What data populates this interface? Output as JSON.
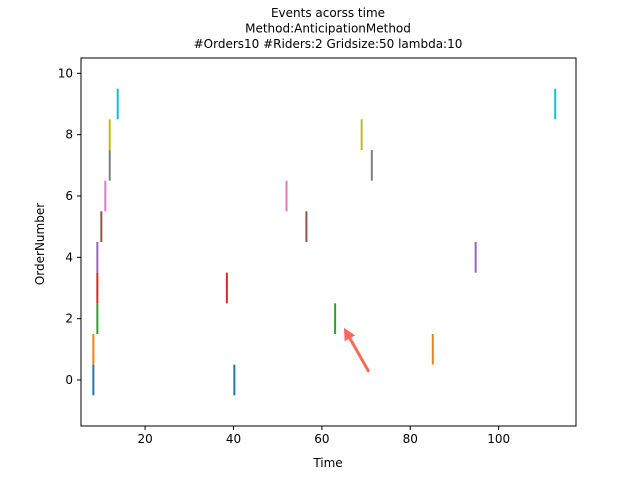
{
  "chart_data": {
    "type": "event-lines",
    "title_lines": [
      "Events acorss time",
      "Method:AnticipationMethod",
      "#Orders10  #Riders:2  Gridsize:50  lambda:10"
    ],
    "xlabel": "Time",
    "ylabel": "OrderNumber",
    "xlim": [
      5.5,
      117.5
    ],
    "ylim": [
      -1.5,
      10.5
    ],
    "xticks": [
      20,
      40,
      60,
      80,
      100
    ],
    "yticks": [
      0,
      2,
      4,
      6,
      8,
      10
    ],
    "line_half_height": 0.5,
    "colors": [
      "#1f77b4",
      "#ff7f0e",
      "#2ca02c",
      "#d62728",
      "#9467bd",
      "#8c564b",
      "#e377c2",
      "#7f7f7f",
      "#bcbd22",
      "#17becf"
    ],
    "events": [
      {
        "order": 0,
        "times": [
          8.3,
          40.2
        ]
      },
      {
        "order": 1,
        "times": [
          8.3,
          85.1
        ]
      },
      {
        "order": 2,
        "times": [
          9.2,
          63.0
        ]
      },
      {
        "order": 3,
        "times": [
          9.2,
          38.5
        ]
      },
      {
        "order": 4,
        "times": [
          9.2,
          94.8
        ]
      },
      {
        "order": 5,
        "times": [
          10.1,
          56.5
        ]
      },
      {
        "order": 6,
        "times": [
          11.0,
          52.0
        ]
      },
      {
        "order": 7,
        "times": [
          12.0,
          71.3
        ]
      },
      {
        "order": 8,
        "times": [
          12.0,
          69.0
        ]
      },
      {
        "order": 9,
        "times": [
          13.8,
          112.8
        ]
      }
    ],
    "annotation": {
      "type": "arrow",
      "color": "#fa6a5a",
      "from": [
        70.5,
        0.3
      ],
      "to": [
        65.0,
        1.7
      ]
    },
    "grid": false,
    "legend": false
  }
}
